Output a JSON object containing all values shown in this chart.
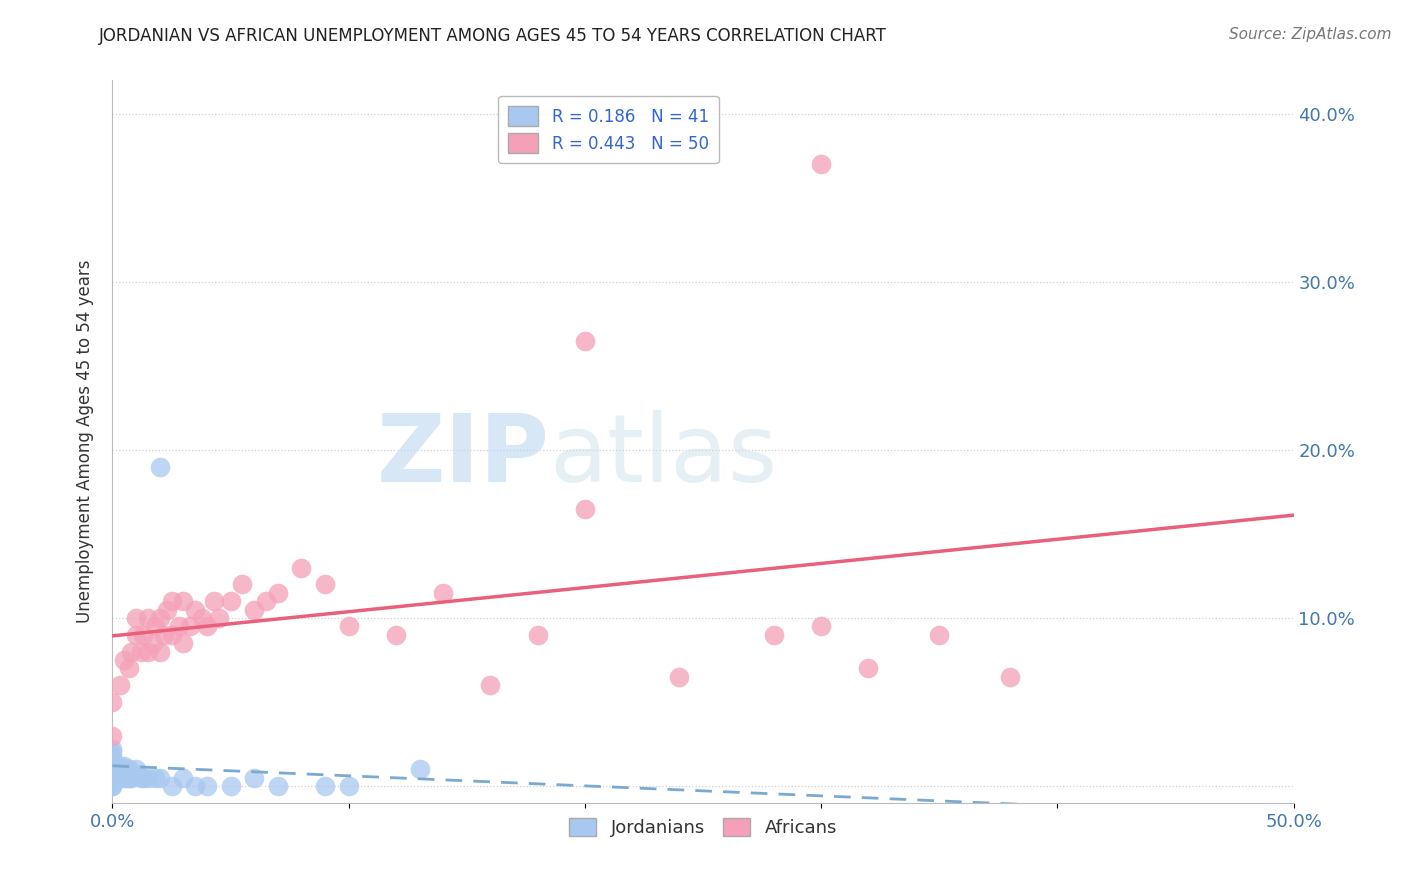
{
  "title": "JORDANIAN VS AFRICAN UNEMPLOYMENT AMONG AGES 45 TO 54 YEARS CORRELATION CHART",
  "source": "Source: ZipAtlas.com",
  "ylabel": "Unemployment Among Ages 45 to 54 years",
  "xlim": [
    0.0,
    0.5
  ],
  "ylim": [
    -0.01,
    0.42
  ],
  "R_jordanian": 0.186,
  "N_jordanian": 41,
  "R_african": 0.443,
  "N_african": 50,
  "color_jordanian": "#a8c8f0",
  "color_african": "#f4a0b8",
  "color_jordanian_line": "#7aaad0",
  "color_african_line": "#e8607a",
  "background_color": "#ffffff",
  "grid_color": "#d0d0d0",
  "jordanian_x": [
    0.0,
    0.0,
    0.0,
    0.0,
    0.0,
    0.0,
    0.0,
    0.0,
    0.0,
    0.0,
    0.0,
    0.0,
    0.002,
    0.002,
    0.003,
    0.003,
    0.004,
    0.005,
    0.005,
    0.006,
    0.007,
    0.007,
    0.008,
    0.01,
    0.01,
    0.012,
    0.013,
    0.015,
    0.018,
    0.02,
    0.025,
    0.03,
    0.035,
    0.04,
    0.05,
    0.06,
    0.07,
    0.09,
    0.1,
    0.13,
    0.02
  ],
  "jordanian_y": [
    0.0,
    0.0,
    0.002,
    0.003,
    0.004,
    0.005,
    0.01,
    0.012,
    0.015,
    0.018,
    0.02,
    0.022,
    0.005,
    0.01,
    0.005,
    0.012,
    0.008,
    0.005,
    0.012,
    0.005,
    0.005,
    0.01,
    0.005,
    0.007,
    0.01,
    0.005,
    0.005,
    0.005,
    0.005,
    0.005,
    0.0,
    0.005,
    0.0,
    0.0,
    0.0,
    0.005,
    0.0,
    0.0,
    0.0,
    0.01,
    0.19
  ],
  "african_x": [
    0.0,
    0.0,
    0.003,
    0.005,
    0.007,
    0.008,
    0.01,
    0.01,
    0.012,
    0.013,
    0.015,
    0.015,
    0.017,
    0.018,
    0.02,
    0.02,
    0.022,
    0.023,
    0.025,
    0.025,
    0.028,
    0.03,
    0.03,
    0.033,
    0.035,
    0.038,
    0.04,
    0.043,
    0.045,
    0.05,
    0.055,
    0.06,
    0.065,
    0.07,
    0.08,
    0.09,
    0.1,
    0.12,
    0.14,
    0.16,
    0.18,
    0.2,
    0.24,
    0.28,
    0.3,
    0.32,
    0.35,
    0.38,
    0.2,
    0.3
  ],
  "african_y": [
    0.03,
    0.05,
    0.06,
    0.075,
    0.07,
    0.08,
    0.09,
    0.1,
    0.08,
    0.09,
    0.08,
    0.1,
    0.085,
    0.095,
    0.08,
    0.1,
    0.09,
    0.105,
    0.09,
    0.11,
    0.095,
    0.085,
    0.11,
    0.095,
    0.105,
    0.1,
    0.095,
    0.11,
    0.1,
    0.11,
    0.12,
    0.105,
    0.11,
    0.115,
    0.13,
    0.12,
    0.095,
    0.09,
    0.115,
    0.06,
    0.09,
    0.165,
    0.065,
    0.09,
    0.095,
    0.07,
    0.09,
    0.065,
    0.265,
    0.37
  ]
}
